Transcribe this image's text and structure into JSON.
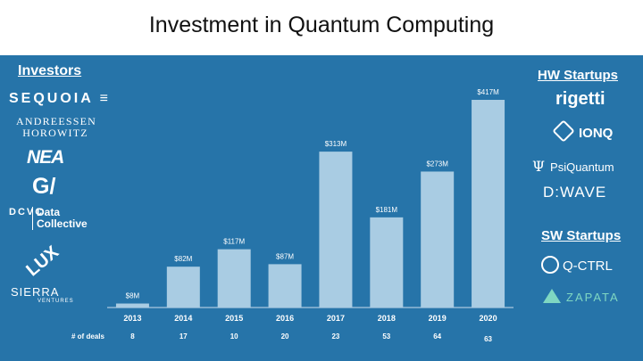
{
  "title": "Investment in Quantum Computing",
  "investors": {
    "heading": "Investors",
    "sequoia": "SEQUOIA ≡",
    "a16z_line1": "ANDREESSEN",
    "a16z_line2": "HOROWITZ",
    "nea": "NEA",
    "gv": "G/",
    "dcvc_mark": "DCVC",
    "dcvc_line1": "Data",
    "dcvc_line2": "Collective",
    "lux": "LUX",
    "sierra": "SIERRA",
    "sierra_sub": "VENTURES"
  },
  "hw_startups": {
    "heading": "HW Startups",
    "rigetti": "rigetti",
    "ionq": "IONQ",
    "psi_symbol": "Ψ",
    "psiquantum": "PsiQuantum",
    "dwave": "D:WAVE"
  },
  "sw_startups": {
    "heading": "SW Startups",
    "qctrl": "Q-CTRL",
    "zapata": "ZAPATA"
  },
  "colors": {
    "panel": "#2674a9",
    "bar": "#a9cce3",
    "axis": "#c9dced"
  },
  "chart_data": {
    "type": "bar",
    "categories": [
      "2013",
      "2014",
      "2015",
      "2016",
      "2017",
      "2018",
      "2019",
      "2020"
    ],
    "values": [
      8,
      82,
      117,
      87,
      313,
      181,
      273,
      417
    ],
    "value_labels": [
      "$8M",
      "$82M",
      "$117M",
      "$87M",
      "$313M",
      "$181M",
      "$273M",
      "$417M"
    ],
    "deals_label": "# of deals",
    "deals": [
      "8",
      "17",
      "10",
      "20",
      "23",
      "53",
      "64",
      "63"
    ],
    "ylim": [
      0,
      417
    ],
    "grid": false,
    "legend": "none"
  }
}
